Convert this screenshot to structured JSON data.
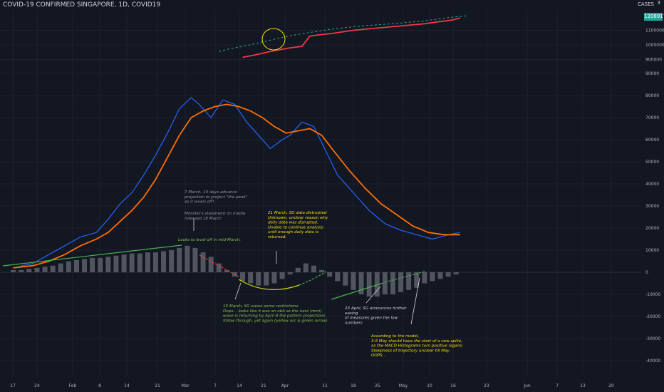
{
  "chart_title": "COVID-19 CONFIRMED SINGAPORE, 1D, COVID19",
  "cases_label": "CASES",
  "cases_sup": "3",
  "last_value_badge": "1208917",
  "colors": {
    "background": "#131722",
    "grid": "#1e2230",
    "price_line": "#f23645",
    "dashed_projection": "#26a69a",
    "macd_line": "#2962ff",
    "signal_line": "#ff6d00",
    "histogram": "#5d606b",
    "green_annotation": "#4caf50",
    "yellow_annotation": "#f5e100",
    "gray_annotation": "#9598a1",
    "white_annotation": "#d1d4dc"
  },
  "chart_data": {
    "type": "line",
    "x_ticks": [
      "17",
      "24",
      "Feb",
      "8",
      "14",
      "21",
      "Mar",
      "7",
      "14",
      "21",
      "Apr",
      "11",
      "18",
      "25",
      "May",
      "10",
      "16",
      "23",
      "Jun",
      "7",
      "13",
      "20"
    ],
    "y_ticks_upper": [
      "1100000",
      "1000000",
      "900000"
    ],
    "y_ticks_lower": [
      "90000",
      "80000",
      "70000",
      "60000",
      "50000",
      "40000",
      "30000",
      "20000",
      "10000",
      "0",
      "-10000",
      "-20000",
      "-30000",
      "-40000"
    ],
    "series": [
      {
        "role": "cases",
        "x": [
          "2020-03-13",
          "2020-03-16",
          "2020-03-20",
          "2020-03-25",
          "2020-03-28",
          "2020-03-30",
          "2020-04-01",
          "2020-04-05",
          "2020-04-10",
          "2020-04-16",
          "2020-04-22",
          "2020-04-28",
          "2020-05-02",
          "2020-05-05",
          "2020-05-07"
        ],
        "values": [
          915000,
          930000,
          955000,
          980000,
          990000,
          1060000,
          1068000,
          1080000,
          1100000,
          1115000,
          1130000,
          1145000,
          1160000,
          1170000,
          1185000
        ]
      },
      {
        "role": "projection",
        "x": [
          "2020-03-07",
          "2020-03-10",
          "2020-03-14",
          "2020-03-18",
          "2020-03-22",
          "2020-03-26",
          "2020-03-30",
          "2020-04-05",
          "2020-04-12",
          "2020-04-20",
          "2020-04-28",
          "2020-05-05",
          "2020-05-09"
        ],
        "values": [
          955000,
          975000,
          995000,
          1020000,
          1045000,
          1068000,
          1085000,
          1110000,
          1130000,
          1145000,
          1165000,
          1190000,
          1200000
        ]
      },
      {
        "role": "macd",
        "x": [
          "2020-01-15",
          "2020-01-20",
          "2020-01-24",
          "2020-01-28",
          "2020-02-01",
          "2020-02-05",
          "2020-02-08",
          "2020-02-11",
          "2020-02-14",
          "2020-02-17",
          "2020-02-20",
          "2020-02-23",
          "2020-02-26",
          "2020-02-29",
          "2020-03-02",
          "2020-03-05",
          "2020-03-08",
          "2020-03-11",
          "2020-03-14",
          "2020-03-17",
          "2020-03-20",
          "2020-03-23",
          "2020-03-25",
          "2020-03-28",
          "2020-03-31",
          "2020-04-03",
          "2020-04-06",
          "2020-04-10",
          "2020-04-14",
          "2020-04-18",
          "2020-04-22",
          "2020-04-26",
          "2020-04-30",
          "2020-05-04",
          "2020-05-07"
        ],
        "values": [
          2000,
          4000,
          8000,
          12000,
          16000,
          18000,
          24000,
          31000,
          36000,
          44000,
          53000,
          63000,
          74000,
          79000,
          76000,
          70000,
          78000,
          76000,
          68000,
          62000,
          56000,
          60000,
          62000,
          68000,
          66000,
          55000,
          44000,
          36000,
          28000,
          22000,
          19000,
          17000,
          15000,
          17000,
          18000
        ]
      },
      {
        "role": "signal",
        "x": [
          "2020-01-15",
          "2020-01-20",
          "2020-01-24",
          "2020-01-28",
          "2020-02-01",
          "2020-02-05",
          "2020-02-08",
          "2020-02-11",
          "2020-02-14",
          "2020-02-17",
          "2020-02-20",
          "2020-02-23",
          "2020-02-26",
          "2020-02-29",
          "2020-03-03",
          "2020-03-06",
          "2020-03-09",
          "2020-03-12",
          "2020-03-15",
          "2020-03-18",
          "2020-03-21",
          "2020-03-24",
          "2020-03-27",
          "2020-03-30",
          "2020-04-02",
          "2020-04-05",
          "2020-04-09",
          "2020-04-13",
          "2020-04-17",
          "2020-04-21",
          "2020-04-25",
          "2020-04-29",
          "2020-05-03",
          "2020-05-07"
        ],
        "values": [
          2000,
          3000,
          5000,
          8000,
          12000,
          15000,
          18000,
          23000,
          28000,
          34000,
          42000,
          52000,
          62000,
          70000,
          73000,
          75000,
          76000,
          75000,
          73000,
          70000,
          66000,
          63000,
          64000,
          65000,
          62000,
          55000,
          46000,
          38000,
          31000,
          26000,
          21000,
          18000,
          17000,
          17000
        ]
      },
      {
        "role": "histogram",
        "x": [
          "2020-01-15",
          "2020-01-17",
          "2020-01-19",
          "2020-01-21",
          "2020-01-23",
          "2020-01-25",
          "2020-01-27",
          "2020-01-29",
          "2020-01-31",
          "2020-02-02",
          "2020-02-04",
          "2020-02-06",
          "2020-02-08",
          "2020-02-10",
          "2020-02-12",
          "2020-02-14",
          "2020-02-16",
          "2020-02-18",
          "2020-02-20",
          "2020-02-22",
          "2020-02-24",
          "2020-02-26",
          "2020-02-28",
          "2020-03-01",
          "2020-03-03",
          "2020-03-05",
          "2020-03-07",
          "2020-03-09",
          "2020-03-11",
          "2020-03-13",
          "2020-03-15",
          "2020-03-17",
          "2020-03-19",
          "2020-03-21",
          "2020-03-23",
          "2020-03-25",
          "2020-03-27",
          "2020-03-29",
          "2020-03-31",
          "2020-04-02",
          "2020-04-04",
          "2020-04-06",
          "2020-04-08",
          "2020-04-10",
          "2020-04-12",
          "2020-04-14",
          "2020-04-16",
          "2020-04-18",
          "2020-04-20",
          "2020-04-22",
          "2020-04-24",
          "2020-04-26",
          "2020-04-28",
          "2020-04-30",
          "2020-05-02",
          "2020-05-04",
          "2020-05-06"
        ],
        "values": [
          1000,
          1000,
          1500,
          2000,
          2500,
          3000,
          4000,
          5000,
          5500,
          6000,
          6500,
          6500,
          7000,
          7500,
          8000,
          8500,
          8500,
          9000,
          9000,
          9500,
          10000,
          11000,
          12000,
          11000,
          9000,
          7000,
          4000,
          1000,
          -2000,
          -4000,
          -5000,
          -6000,
          -6000,
          -5000,
          -3000,
          -1000,
          2000,
          4000,
          3000,
          1000,
          -2000,
          -4000,
          -6000,
          -8000,
          -10000,
          -11000,
          -11000,
          -10000,
          -10000,
          -9000,
          -8000,
          -7000,
          -5000,
          -4000,
          -3000,
          -2000,
          -1000
        ]
      }
    ],
    "annotations": [
      {
        "id": "gray-1",
        "lines": [
          "7 March,  10 days advance",
          "projection to project \"the peak\"",
          "as it levels off!"
        ]
      },
      {
        "id": "gray-2",
        "lines": [
          "Minister's statement on media",
          "released 18 March"
        ]
      },
      {
        "id": "green-1",
        "lines": [
          "Looks to level off in mid-March."
        ]
      },
      {
        "id": "yellow-1",
        "lines": [
          "21 March, SG data distrupted",
          "",
          "Unknown, unclear reason why",
          "daily data was disrupted.",
          "Unable to continue analysis",
          "until enough daily data is",
          "returned."
        ]
      },
      {
        "id": "green-2",
        "lines": [
          "15 March, SG eases some restrictions",
          "",
          "Oops... looks like it was an ebb as the next (mini)",
          "wave is returning by April 8 the pattern projections",
          "follow through, yet again (yellow arc & green arrow)"
        ]
      },
      {
        "id": "white-1",
        "lines": [
          "23 April, SG announces further",
          "easing",
          "of measures given the low",
          "numbers"
        ]
      },
      {
        "id": "yellow-2",
        "lines": [
          "According to the model,",
          "3-5 May should have the start of a new spike,",
          "as the MACD Histograms turn positive (again)",
          "Steepness of trajectory unclear till May.",
          "OOPS..."
        ]
      }
    ]
  }
}
